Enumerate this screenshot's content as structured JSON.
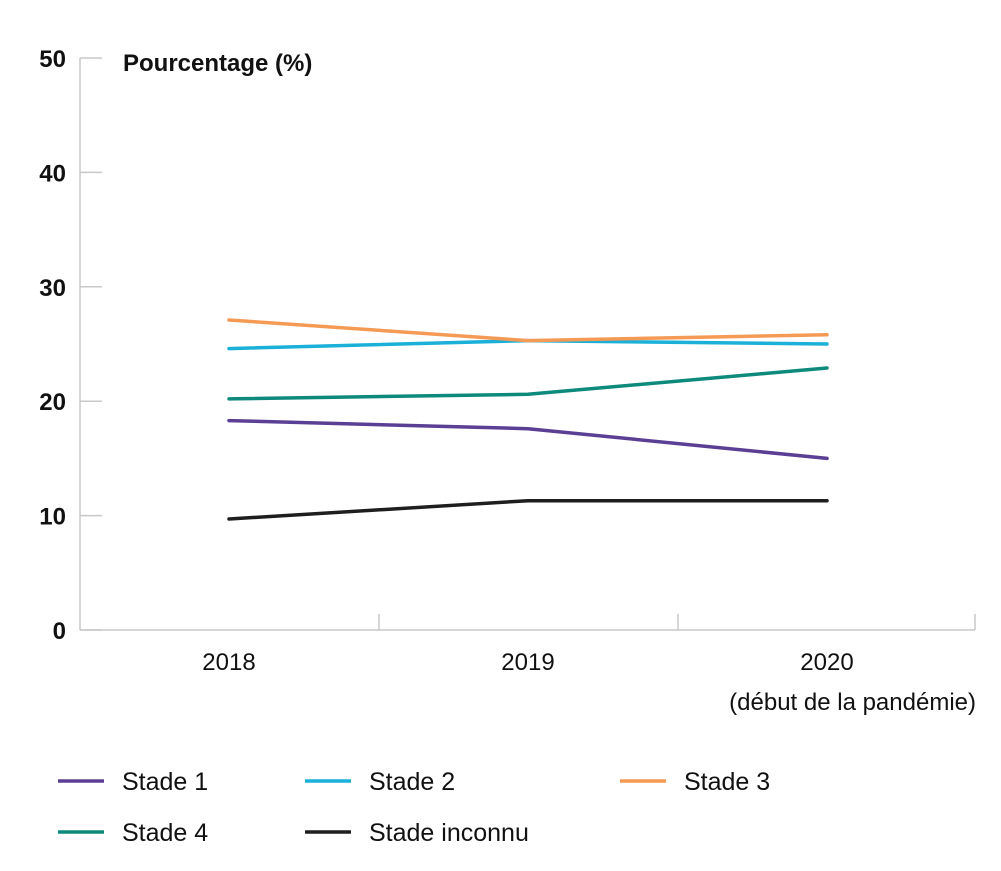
{
  "chart_data": {
    "type": "line",
    "ylabel": "Pourcentage (%)",
    "ylim": [
      0,
      50
    ],
    "yticks": [
      "0",
      "10",
      "20",
      "30",
      "40",
      "50"
    ],
    "categories": [
      "2018",
      "2019",
      "2020"
    ],
    "category_notes": [
      "",
      "",
      "(début de la pandémie)"
    ],
    "grid": false,
    "legend_position": "bottom",
    "series": [
      {
        "name": "Stade 1",
        "color": "#5b3f95",
        "values": [
          18.3,
          17.6,
          15.0
        ]
      },
      {
        "name": "Stade 2",
        "color": "#1ab0d8",
        "values": [
          24.6,
          25.3,
          25.0
        ]
      },
      {
        "name": "Stade 3",
        "color": "#f59a55",
        "values": [
          27.1,
          25.3,
          25.8
        ]
      },
      {
        "name": "Stade 4",
        "color": "#0e8a7c",
        "values": [
          20.2,
          20.6,
          22.9
        ]
      },
      {
        "name": "Stade inconnu",
        "color": "#1e1e1e",
        "values": [
          9.7,
          11.3,
          11.3
        ]
      }
    ]
  }
}
